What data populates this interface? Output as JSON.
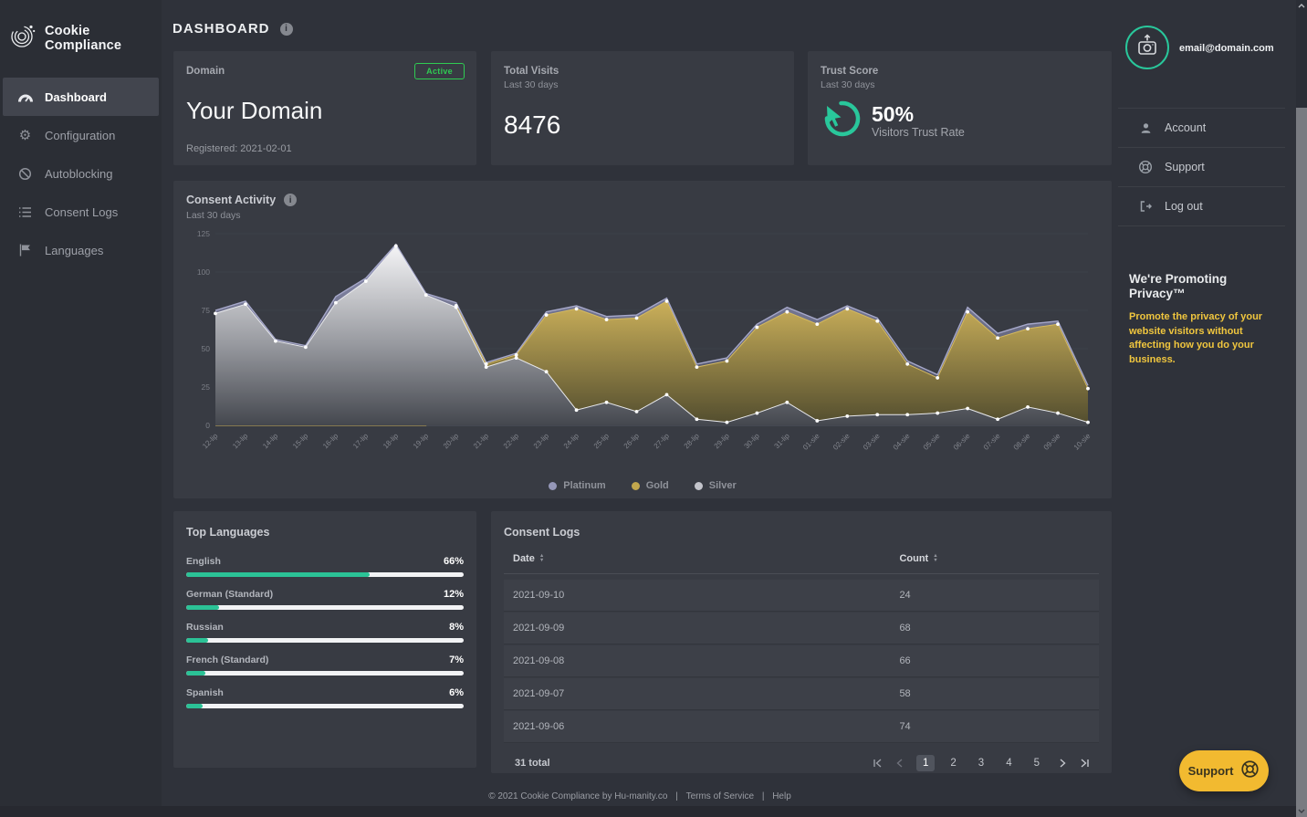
{
  "app": {
    "brand": "Cookie Compliance",
    "page_title": "DASHBOARD"
  },
  "sidebar": {
    "items": [
      {
        "label": "Dashboard",
        "active": true
      },
      {
        "label": "Configuration",
        "active": false
      },
      {
        "label": "Autoblocking",
        "active": false
      },
      {
        "label": "Consent Logs",
        "active": false
      },
      {
        "label": "Languages",
        "active": false
      }
    ]
  },
  "cards": {
    "domain": {
      "title": "Domain",
      "badge": "Active",
      "name": "Your Domain",
      "registered": "Registered: 2021-02-01"
    },
    "visits": {
      "title": "Total Visits",
      "subtitle": "Last 30 days",
      "value": "8476"
    },
    "trust": {
      "title": "Trust Score",
      "subtitle": "Last 30 days",
      "value": "50%",
      "caption": "Visitors Trust Rate"
    }
  },
  "chart_panel": {
    "title": "Consent Activity",
    "subtitle": "Last 30 days"
  },
  "chart_data": {
    "type": "area",
    "title": "Consent Activity",
    "x": [
      "12-lip",
      "13-lip",
      "14-lip",
      "15-lip",
      "16-lip",
      "17-lip",
      "18-lip",
      "19-lip",
      "20-lip",
      "21-lip",
      "22-lip",
      "23-lip",
      "24-lip",
      "25-lip",
      "26-lip",
      "27-lip",
      "28-lip",
      "29-lip",
      "30-lip",
      "31-lip",
      "01-sie",
      "02-sie",
      "03-sie",
      "04-sie",
      "05-sie",
      "06-sie",
      "07-sie",
      "08-sie",
      "09-sie",
      "10-sie"
    ],
    "series": [
      {
        "name": "Platinum",
        "color": "#9597b8",
        "values": [
          75,
          81,
          56,
          52,
          84,
          96,
          118,
          86,
          80,
          41,
          47,
          74,
          78,
          71,
          72,
          83,
          40,
          44,
          66,
          77,
          69,
          78,
          70,
          42,
          33,
          77,
          60,
          66,
          68,
          26
        ]
      },
      {
        "name": "Gold",
        "color": "#c2a74d",
        "values": [
          0,
          0,
          0,
          0,
          0,
          0,
          0,
          0,
          78,
          40,
          46,
          72,
          76,
          69,
          70,
          81,
          38,
          42,
          64,
          74,
          66,
          76,
          68,
          40,
          31,
          74,
          57,
          63,
          66,
          24
        ]
      },
      {
        "name": "Silver",
        "color": "#c3c4cb",
        "values": [
          73,
          79,
          55,
          51,
          80,
          94,
          117,
          85,
          77,
          38,
          44,
          35,
          10,
          15,
          9,
          20,
          4,
          2,
          8,
          15,
          3,
          6,
          7,
          7,
          8,
          11,
          4,
          12,
          8,
          2
        ]
      }
    ],
    "ylim": [
      0,
      125
    ],
    "yticks": [
      0,
      25,
      50,
      75,
      100,
      125
    ],
    "grid": true,
    "legend_position": "bottom"
  },
  "languages_panel": {
    "title": "Top Languages",
    "items": [
      {
        "name": "English",
        "pct": "66%"
      },
      {
        "name": "German (Standard)",
        "pct": "12%"
      },
      {
        "name": "Russian",
        "pct": "8%"
      },
      {
        "name": "French (Standard)",
        "pct": "7%"
      },
      {
        "name": "Spanish",
        "pct": "6%"
      }
    ]
  },
  "logs_panel": {
    "title": "Consent Logs",
    "columns": [
      "Date",
      "Count"
    ],
    "rows": [
      [
        "2021-09-10",
        "24"
      ],
      [
        "2021-09-09",
        "68"
      ],
      [
        "2021-09-08",
        "66"
      ],
      [
        "2021-09-07",
        "58"
      ],
      [
        "2021-09-06",
        "74"
      ]
    ],
    "total": "31 total",
    "pages": [
      "1",
      "2",
      "3",
      "4",
      "5"
    ],
    "active_page": "1"
  },
  "user_panel": {
    "email": "email@domain.com",
    "menu": [
      {
        "label": "Account"
      },
      {
        "label": "Support"
      },
      {
        "label": "Log out"
      }
    ],
    "promo_line1": "We're Promoting",
    "promo_line2": "Privacy™",
    "promo_text": "Promote the privacy of your website visitors without affecting how you do your business."
  },
  "footer": {
    "copyright": "© 2021 Cookie Compliance by Hu-manity.co",
    "separator": "|",
    "terms": "Terms of Service",
    "help": "Help"
  },
  "fab": {
    "label": "Support"
  },
  "colors": {
    "accent_teal": "#29c79b",
    "badge_green": "#2fcb52",
    "promo_yellow": "#f0c63e",
    "support_yellow": "#f2ba30",
    "gold_series": "#c2a74d",
    "platinum_series": "#9597b8",
    "silver_series": "#c3c4cb"
  }
}
